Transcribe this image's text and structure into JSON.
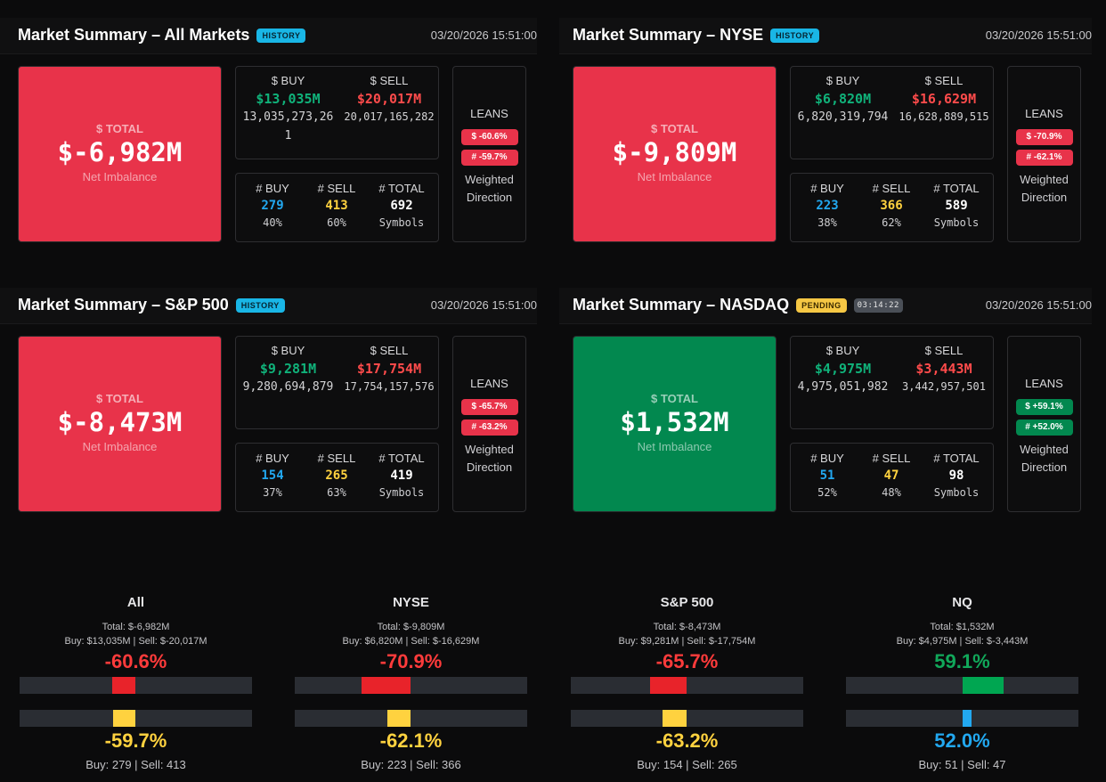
{
  "panels": [
    {
      "title": "Market Summary – All Markets",
      "badge": "HISTORY",
      "timestamp": "03/20/2026 15:51:00",
      "total_label": "$ TOTAL",
      "total_value": "$-6,982M",
      "total_sub": "Net Imbalance",
      "buy_label": "$ BUY",
      "sell_label": "$ SELL",
      "buy_value": "$13,035M",
      "sell_value": "$20,017M",
      "buy_raw": "13,035,273,261",
      "sell_raw": "20,017,165,282",
      "count_buy_label": "# BUY",
      "count_sell_label": "# SELL",
      "count_total_label": "# TOTAL",
      "count_buy": "279",
      "count_sell": "413",
      "count_total": "692",
      "buy_pct": "40%",
      "sell_pct": "60%",
      "symbols_label": "Symbols",
      "leans_label": "LEANS",
      "lean_dollar": "$ -60.6%",
      "lean_count": "# -59.7%",
      "weighted_direction": "Weighted Direction"
    },
    {
      "title": "Market Summary – NYSE",
      "badge": "HISTORY",
      "timestamp": "03/20/2026 15:51:00",
      "total_label": "$ TOTAL",
      "total_value": "$-9,809M",
      "total_sub": "Net Imbalance",
      "buy_label": "$ BUY",
      "sell_label": "$ SELL",
      "buy_value": "$6,820M",
      "sell_value": "$16,629M",
      "buy_raw": "6,820,319,794",
      "sell_raw": "16,628,889,515",
      "count_buy_label": "# BUY",
      "count_sell_label": "# SELL",
      "count_total_label": "# TOTAL",
      "count_buy": "223",
      "count_sell": "366",
      "count_total": "589",
      "buy_pct": "38%",
      "sell_pct": "62%",
      "symbols_label": "Symbols",
      "leans_label": "LEANS",
      "lean_dollar": "$ -70.9%",
      "lean_count": "# -62.1%",
      "weighted_direction": "Weighted Direction"
    },
    {
      "title": "Market Summary – S&P 500",
      "badge": "HISTORY",
      "timestamp": "03/20/2026 15:51:00",
      "total_label": "$ TOTAL",
      "total_value": "$-8,473M",
      "total_sub": "Net Imbalance",
      "buy_label": "$ BUY",
      "sell_label": "$ SELL",
      "buy_value": "$9,281M",
      "sell_value": "$17,754M",
      "buy_raw": "9,280,694,879",
      "sell_raw": "17,754,157,576",
      "count_buy_label": "# BUY",
      "count_sell_label": "# SELL",
      "count_total_label": "# TOTAL",
      "count_buy": "154",
      "count_sell": "265",
      "count_total": "419",
      "buy_pct": "37%",
      "sell_pct": "63%",
      "symbols_label": "Symbols",
      "leans_label": "LEANS",
      "lean_dollar": "$ -65.7%",
      "lean_count": "# -63.2%",
      "weighted_direction": "Weighted Direction"
    },
    {
      "title": "Market Summary – NASDAQ",
      "badge": "PENDING",
      "timer": "03:14:22",
      "timestamp": "03/20/2026 15:51:00",
      "total_label": "$ TOTAL",
      "total_value": "$1,532M",
      "total_sub": "Net Imbalance",
      "buy_label": "$ BUY",
      "sell_label": "$ SELL",
      "buy_value": "$4,975M",
      "sell_value": "$3,443M",
      "buy_raw": "4,975,051,982",
      "sell_raw": "3,442,957,501",
      "count_buy_label": "# BUY",
      "count_sell_label": "# SELL",
      "count_total_label": "# TOTAL",
      "count_buy": "51",
      "count_sell": "47",
      "count_total": "98",
      "buy_pct": "52%",
      "sell_pct": "48%",
      "symbols_label": "Symbols",
      "leans_label": "LEANS",
      "lean_dollar": "$ +59.1%",
      "lean_count": "# +52.0%",
      "weighted_direction": "Weighted Direction"
    }
  ],
  "summaries": [
    {
      "name": "All",
      "total_line": "Total: $-6,982M",
      "buy_sell_line": "Buy: $13,035M | Sell: $-20,017M",
      "dollar_pct": "-60.6%",
      "dollar_lean": -0.606,
      "count_pct": "-59.7%",
      "count_lean": -0.597,
      "count_line": "Buy: 279 | Sell: 413"
    },
    {
      "name": "NYSE",
      "total_line": "Total: $-9,809M",
      "buy_sell_line": "Buy: $6,820M | Sell: $-16,629M",
      "dollar_pct": "-70.9%",
      "dollar_lean": -0.709,
      "count_pct": "-62.1%",
      "count_lean": -0.621,
      "count_line": "Buy: 223 | Sell: 366"
    },
    {
      "name": "S&P 500",
      "total_line": "Total: $-8,473M",
      "buy_sell_line": "Buy: $9,281M | Sell: $-17,754M",
      "dollar_pct": "-65.7%",
      "dollar_lean": -0.657,
      "count_pct": "-63.2%",
      "count_lean": -0.632,
      "count_line": "Buy: 154 | Sell: 265"
    },
    {
      "name": "NQ",
      "total_line": "Total: $1,532M",
      "buy_sell_line": "Buy: $4,975M | Sell: $-3,443M",
      "dollar_pct": "59.1%",
      "dollar_lean": 0.591,
      "count_pct": "52.0%",
      "count_lean": 0.52,
      "count_line": "Buy: 51 | Sell: 47"
    }
  ],
  "colors": {
    "negative": "#e8334a",
    "positive": "#02884f",
    "bar_negative": "#e8232a",
    "bar_positive": "#00a651",
    "bar_count_negative": "#ffd23f",
    "bar_count_positive": "#22a8f0"
  }
}
